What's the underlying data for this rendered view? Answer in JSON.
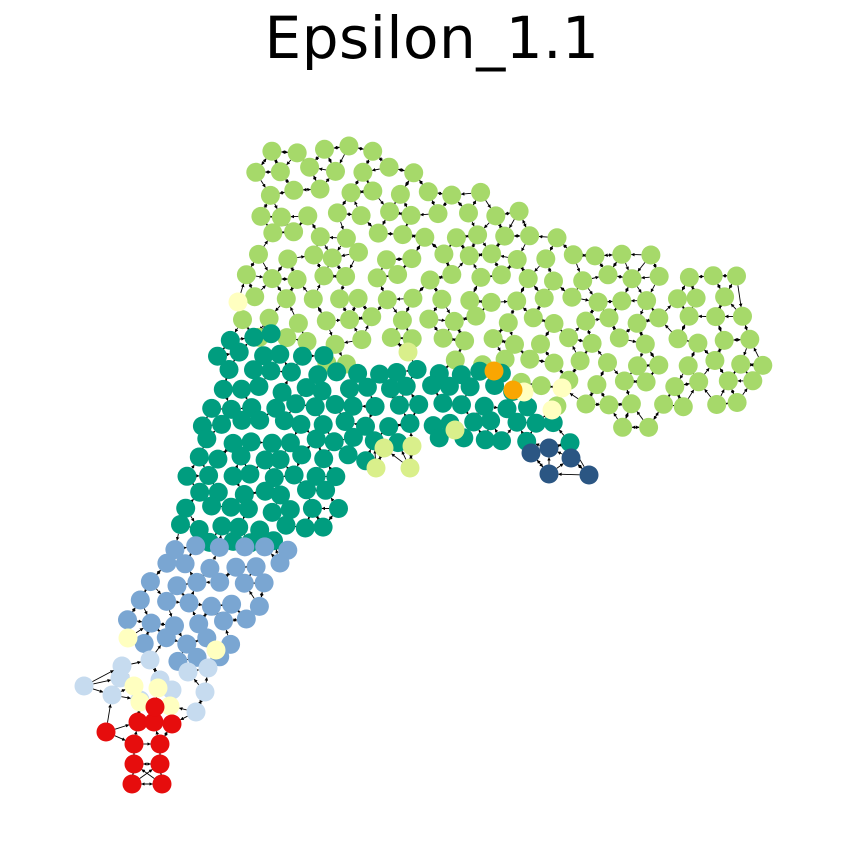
{
  "figure": {
    "title": "Epsilon_1.1"
  },
  "palette": {
    "light-green": "#a6d96a",
    "teal": "#009d7f",
    "steel-blue": "#7aa6d2",
    "pale-blue": "#c6dbef",
    "pale-yellow": "#ffffc0",
    "yellow-green": "#d9ef8b",
    "orange": "#f9a602",
    "navy": "#2b5683",
    "red": "#e60d0d"
  },
  "edge_color": "#000000"
}
